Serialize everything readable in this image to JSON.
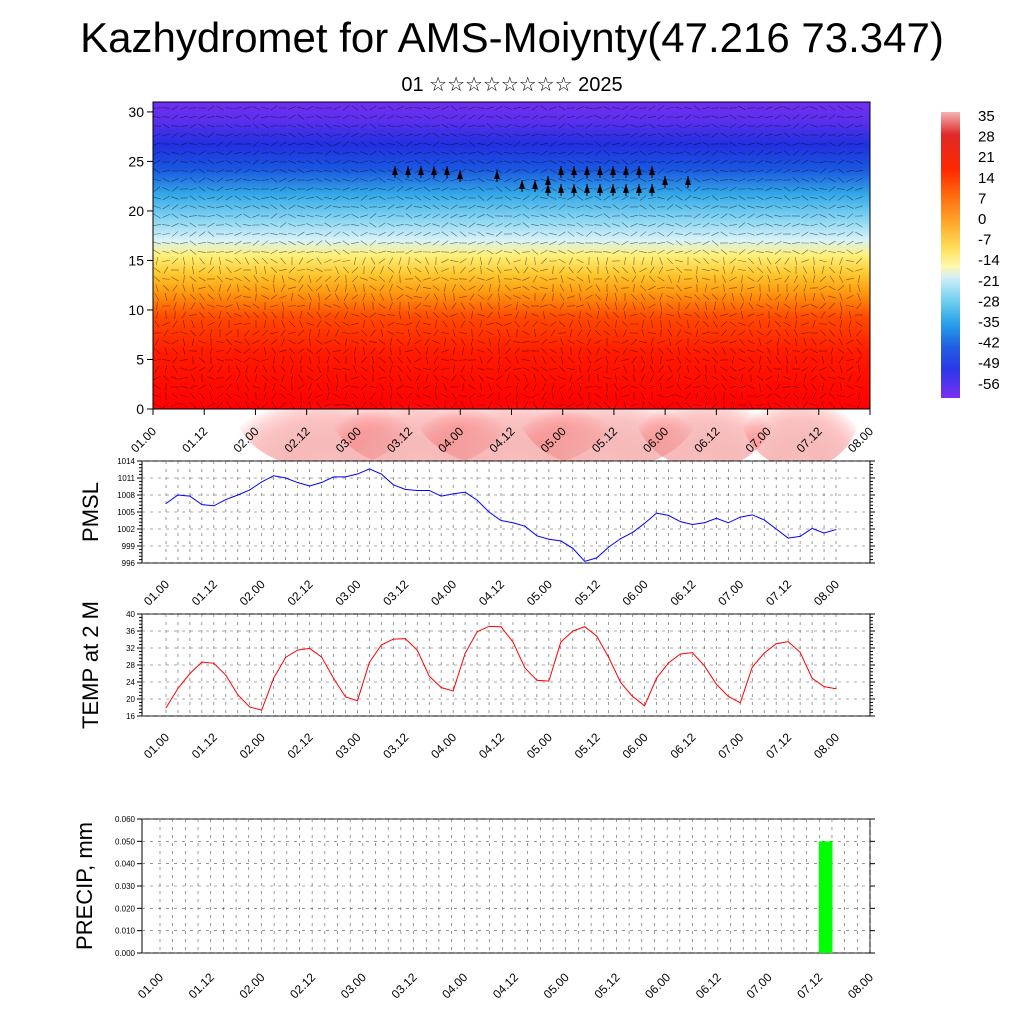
{
  "title": "Kazhydromet for AMS-Moiynty(47.216 73.347)",
  "subtitle": "01 ☆☆☆☆☆☆☆☆ 2025",
  "time_labels": [
    "01.00",
    "01.12",
    "02.00",
    "02.12",
    "03.00",
    "03.12",
    "04.00",
    "04.12",
    "05.00",
    "05.12",
    "06.00",
    "06.12",
    "07.00",
    "07.12",
    "08.00"
  ],
  "chart_data": [
    {
      "type": "heatmap",
      "description_free": true,
      "x_tick_labels": [
        "01.00",
        "01.12",
        "02.00",
        "02.12",
        "03.00",
        "03.12",
        "04.00",
        "04.12",
        "05.00",
        "05.12",
        "06.00",
        "06.12",
        "07.00",
        "07.12",
        "08.00"
      ],
      "y_tick_labels": [
        "0",
        "5",
        "10",
        "15",
        "20",
        "25",
        "30"
      ],
      "ylim": [
        0,
        31
      ],
      "colorbar_labels": [
        "35",
        "28",
        "21",
        "14",
        "7",
        "0",
        "-7",
        "-14",
        "-21",
        "-28",
        "-35",
        "-42",
        "-49",
        "-56"
      ],
      "colorbar_colors": [
        "#f2aaaa",
        "#e02020",
        "#ff3000",
        "#ff7a10",
        "#ffa820",
        "#ffd040",
        "#fff080",
        "#c8eef8",
        "#70cff0",
        "#2aa8e8",
        "#2070e0",
        "#2040e8",
        "#4030f0",
        "#7a30f0"
      ]
    },
    {
      "type": "line",
      "ylabel": "PMSL",
      "ylim": [
        996,
        1014
      ],
      "y_ticks": [
        "996",
        "999",
        "1002",
        "1005",
        "1008",
        "1011",
        "1014"
      ],
      "color": "#0000ff",
      "x": [
        "01.00",
        "01.03",
        "01.06",
        "01.09",
        "01.12",
        "01.15",
        "01.18",
        "01.21",
        "02.00",
        "02.03",
        "02.06",
        "02.09",
        "02.12",
        "02.15",
        "02.18",
        "02.21",
        "03.00",
        "03.03",
        "03.06",
        "03.09",
        "03.12",
        "03.15",
        "03.18",
        "03.21",
        "04.00",
        "04.03",
        "04.06",
        "04.09",
        "04.12",
        "04.15",
        "04.18",
        "04.21",
        "05.00",
        "05.03",
        "05.06",
        "05.09",
        "05.12",
        "05.15",
        "05.18",
        "05.21",
        "06.00",
        "06.03",
        "06.06",
        "06.09",
        "06.12",
        "06.15",
        "06.18",
        "06.21",
        "07.00",
        "07.03",
        "07.06",
        "07.09",
        "07.12",
        "07.15",
        "07.18",
        "07.21",
        "08.00"
      ],
      "values": [
        1006.5,
        1008.0,
        1007.8,
        1006.3,
        1006.1,
        1007.2,
        1008.0,
        1008.9,
        1010.3,
        1011.4,
        1011.0,
        1010.2,
        1009.6,
        1010.2,
        1011.2,
        1011.2,
        1011.7,
        1012.6,
        1011.7,
        1009.8,
        1009.0,
        1008.8,
        1008.8,
        1007.8,
        1008.2,
        1008.5,
        1007.1,
        1005.0,
        1003.5,
        1003.1,
        1002.5,
        1000.8,
        1000.2,
        999.9,
        998.6,
        996.3,
        996.9,
        998.8,
        1000.3,
        1001.4,
        1003.0,
        1004.8,
        1004.4,
        1003.3,
        1002.8,
        1003.1,
        1003.9,
        1003.1,
        1004.1,
        1004.5,
        1003.6,
        1002.0,
        1000.4,
        1000.7,
        1002.1,
        1001.3,
        1001.9
      ]
    },
    {
      "type": "line",
      "ylabel": "TEMP at 2 M",
      "ylim": [
        16,
        40
      ],
      "y_ticks": [
        "16",
        "20",
        "24",
        "28",
        "32",
        "36",
        "40"
      ],
      "color": "#ff0000",
      "x": [
        "01.00",
        "01.03",
        "01.06",
        "01.09",
        "01.12",
        "01.15",
        "01.18",
        "01.21",
        "02.00",
        "02.03",
        "02.06",
        "02.09",
        "02.12",
        "02.15",
        "02.18",
        "02.21",
        "03.00",
        "03.03",
        "03.06",
        "03.09",
        "03.12",
        "03.15",
        "03.18",
        "03.21",
        "04.00",
        "04.03",
        "04.06",
        "04.09",
        "04.12",
        "04.15",
        "04.18",
        "04.21",
        "05.00",
        "05.03",
        "05.06",
        "05.09",
        "05.12",
        "05.15",
        "05.18",
        "05.21",
        "06.00",
        "06.03",
        "06.06",
        "06.09",
        "06.12",
        "06.15",
        "06.18",
        "06.21",
        "07.00",
        "07.03",
        "07.06",
        "07.09",
        "07.12",
        "07.15",
        "07.18",
        "07.21",
        "08.00"
      ],
      "values": [
        17.9,
        22.5,
        26.0,
        28.7,
        28.4,
        25.6,
        21.0,
        18.1,
        17.4,
        24.9,
        29.8,
        31.5,
        31.9,
        29.9,
        24.9,
        20.5,
        19.6,
        28.6,
        32.7,
        34.1,
        34.2,
        31.5,
        25.4,
        22.7,
        21.9,
        30.7,
        35.8,
        37.1,
        37.0,
        33.4,
        27.3,
        24.4,
        24.2,
        33.4,
        36.0,
        37.0,
        34.8,
        29.8,
        23.9,
        20.6,
        18.4,
        24.9,
        28.5,
        30.6,
        30.9,
        27.8,
        23.5,
        20.6,
        19.1,
        27.5,
        30.8,
        33.0,
        33.5,
        31.0,
        24.9,
        22.9,
        22.4
      ]
    },
    {
      "type": "bar",
      "ylabel": "PRECIP, mm",
      "ylim": [
        0,
        0.06
      ],
      "y_ticks": [
        "0.000",
        "0.010",
        "0.020",
        "0.030",
        "0.040",
        "0.050",
        "0.060"
      ],
      "color": "#00ff00",
      "categories": [
        "07.12-07.15"
      ],
      "values": [
        0.05
      ]
    }
  ]
}
